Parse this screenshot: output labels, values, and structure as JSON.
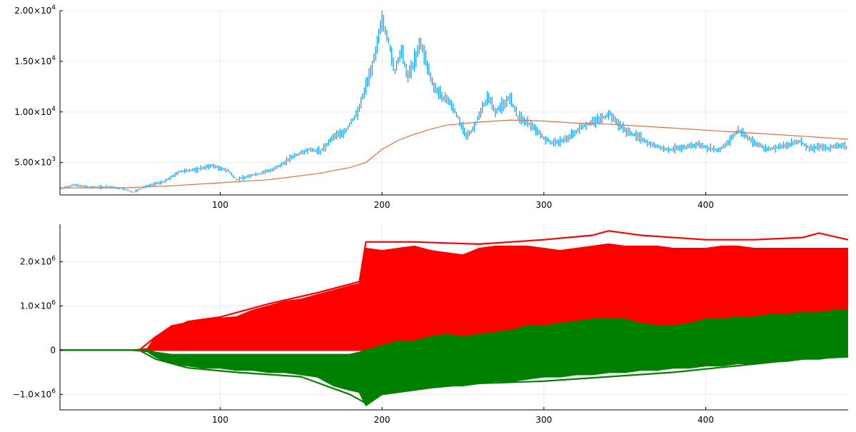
{
  "chart_data": [
    {
      "type": "line",
      "title": "",
      "xlabel": "",
      "ylabel": "",
      "xlim": [
        1,
        488
      ],
      "ylim": [
        1800,
        20000
      ],
      "grid": true,
      "legend": "none",
      "xticks": [
        100,
        200,
        300,
        400
      ],
      "yticks": [
        {
          "value": 5000,
          "mantissa": "5.00×10",
          "exp": "3"
        },
        {
          "value": 10000,
          "mantissa": "1.00×10",
          "exp": "4"
        },
        {
          "value": 15000,
          "mantissa": "1.50×10",
          "exp": "4"
        },
        {
          "value": 20000,
          "mantissa": "2.00×10",
          "exp": "4"
        }
      ],
      "series": [
        {
          "style": "range-bars",
          "color": "#009AFA",
          "points": [
            [
              1,
              2400
            ],
            [
              10,
              2800
            ],
            [
              20,
              2550
            ],
            [
              30,
              2600
            ],
            [
              40,
              2450
            ],
            [
              46,
              2050
            ],
            [
              55,
              2700
            ],
            [
              65,
              3100
            ],
            [
              75,
              4100
            ],
            [
              85,
              4300
            ],
            [
              95,
              4700
            ],
            [
              105,
              4200
            ],
            [
              110,
              3300
            ],
            [
              118,
              3700
            ],
            [
              125,
              3900
            ],
            [
              135,
              4500
            ],
            [
              145,
              5600
            ],
            [
              155,
              6300
            ],
            [
              162,
              6100
            ],
            [
              170,
              7500
            ],
            [
              178,
              8200
            ],
            [
              185,
              10000
            ],
            [
              190,
              12500
            ],
            [
              193,
              14000
            ],
            [
              197,
              16500
            ],
            [
              200,
              19300
            ],
            [
              204,
              17000
            ],
            [
              208,
              14000
            ],
            [
              212,
              16000
            ],
            [
              216,
              13500
            ],
            [
              220,
              15000
            ],
            [
              224,
              16800
            ],
            [
              228,
              14500
            ],
            [
              232,
              12500
            ],
            [
              237,
              11500
            ],
            [
              242,
              11000
            ],
            [
              247,
              9500
            ],
            [
              252,
              7500
            ],
            [
              257,
              8500
            ],
            [
              262,
              10500
            ],
            [
              266,
              11500
            ],
            [
              270,
              10000
            ],
            [
              275,
              10800
            ],
            [
              279,
              11400
            ],
            [
              284,
              9500
            ],
            [
              289,
              9000
            ],
            [
              295,
              8400
            ],
            [
              300,
              7400
            ],
            [
              306,
              6900
            ],
            [
              312,
              7200
            ],
            [
              318,
              7800
            ],
            [
              324,
              8600
            ],
            [
              330,
              9000
            ],
            [
              336,
              9400
            ],
            [
              341,
              9800
            ],
            [
              346,
              8800
            ],
            [
              352,
              8000
            ],
            [
              358,
              7600
            ],
            [
              364,
              7000
            ],
            [
              370,
              6600
            ],
            [
              377,
              6200
            ],
            [
              384,
              6500
            ],
            [
              390,
              6600
            ],
            [
              396,
              6800
            ],
            [
              402,
              6400
            ],
            [
              408,
              6200
            ],
            [
              414,
              7000
            ],
            [
              420,
              8200
            ],
            [
              426,
              7500
            ],
            [
              432,
              6800
            ],
            [
              438,
              6300
            ],
            [
              445,
              6500
            ],
            [
              452,
              6800
            ],
            [
              458,
              7100
            ],
            [
              464,
              6400
            ],
            [
              470,
              6600
            ],
            [
              476,
              6400
            ],
            [
              482,
              6700
            ],
            [
              488,
              6500
            ]
          ]
        },
        {
          "style": "line",
          "color": "#E26F46",
          "points": [
            [
              1,
              2500
            ],
            [
              40,
              2500
            ],
            [
              70,
              2700
            ],
            [
              100,
              3000
            ],
            [
              130,
              3300
            ],
            [
              160,
              3900
            ],
            [
              180,
              4500
            ],
            [
              190,
              5000
            ],
            [
              200,
              6300
            ],
            [
              210,
              7200
            ],
            [
              220,
              7800
            ],
            [
              230,
              8300
            ],
            [
              240,
              8700
            ],
            [
              260,
              9000
            ],
            [
              280,
              9200
            ],
            [
              300,
              9100
            ],
            [
              320,
              8900
            ],
            [
              340,
              8800
            ],
            [
              360,
              8600
            ],
            [
              380,
              8400
            ],
            [
              400,
              8200
            ],
            [
              420,
              8000
            ],
            [
              440,
              7800
            ],
            [
              460,
              7600
            ],
            [
              488,
              7300
            ]
          ]
        }
      ]
    },
    {
      "type": "line",
      "title": "",
      "xlabel": "",
      "ylabel": "",
      "xlim": [
        1,
        488
      ],
      "ylim": [
        -1350000,
        2850000
      ],
      "grid": true,
      "legend": "none",
      "xticks": [
        100,
        200,
        300,
        400
      ],
      "yticks": [
        {
          "value": -1000000,
          "mantissa": "−1.0×10",
          "exp": "6"
        },
        {
          "value": 0,
          "mantissa": "0",
          "exp": ""
        },
        {
          "value": 1000000,
          "mantissa": "1.0×10",
          "exp": "6"
        },
        {
          "value": 2000000,
          "mantissa": "2.0×10",
          "exp": "6"
        }
      ],
      "band_colors": {
        "upper": "#FF0000",
        "lower": "#008000"
      },
      "bands": [
        {
          "color": "#FF0000",
          "x": [
            1,
            45,
            55,
            60,
            70,
            80,
            90,
            100,
            110,
            120,
            130,
            140,
            150,
            160,
            170,
            180,
            186,
            190,
            200,
            210,
            220,
            230,
            240,
            250,
            260,
            270,
            280,
            290,
            300,
            310,
            320,
            330,
            340,
            350,
            360,
            370,
            380,
            390,
            400,
            410,
            420,
            430,
            440,
            450,
            460,
            470,
            480,
            488
          ],
          "upper": [
            0,
            0,
            30000,
            300000,
            550000,
            620000,
            700000,
            720000,
            750000,
            900000,
            1000000,
            1100000,
            1150000,
            1250000,
            1350000,
            1450000,
            1500000,
            2300000,
            2250000,
            2300000,
            2350000,
            2250000,
            2200000,
            2150000,
            2300000,
            2350000,
            2350000,
            2350000,
            2300000,
            2250000,
            2300000,
            2350000,
            2400000,
            2350000,
            2350000,
            2350000,
            2300000,
            2300000,
            2300000,
            2350000,
            2350000,
            2300000,
            2300000,
            2300000,
            2300000,
            2300000,
            2300000,
            2300000
          ],
          "lower": [
            0,
            0,
            0,
            0,
            0,
            0,
            0,
            0,
            0,
            0,
            0,
            0,
            0,
            0,
            0,
            0,
            0,
            0,
            50000,
            80000,
            100000,
            80000,
            50000,
            30000,
            100000,
            150000,
            200000,
            200000,
            150000,
            150000,
            200000,
            200000,
            250000,
            200000,
            150000,
            100000,
            50000,
            50000,
            0,
            50000,
            100000,
            100000,
            100000,
            150000,
            200000,
            200000,
            200000,
            200000
          ]
        },
        {
          "color": "#008000",
          "x": [
            1,
            45,
            55,
            60,
            70,
            80,
            90,
            100,
            110,
            120,
            130,
            140,
            150,
            160,
            170,
            180,
            186,
            190,
            200,
            210,
            220,
            230,
            240,
            250,
            260,
            270,
            280,
            290,
            300,
            310,
            320,
            330,
            340,
            350,
            360,
            370,
            380,
            390,
            400,
            410,
            420,
            430,
            440,
            450,
            460,
            470,
            480,
            488
          ],
          "upper": [
            0,
            0,
            0,
            -50000,
            -100000,
            -100000,
            -100000,
            -100000,
            -100000,
            -100000,
            -100000,
            -100000,
            -100000,
            -100000,
            -100000,
            -100000,
            -50000,
            0,
            100000,
            200000,
            200000,
            300000,
            350000,
            300000,
            350000,
            400000,
            450000,
            550000,
            550000,
            600000,
            650000,
            700000,
            700000,
            700000,
            600000,
            550000,
            550000,
            600000,
            700000,
            700000,
            750000,
            750000,
            800000,
            800000,
            850000,
            850000,
            900000,
            900000
          ],
          "lower": [
            0,
            0,
            -30000,
            -150000,
            -300000,
            -350000,
            -400000,
            -400000,
            -450000,
            -450000,
            -500000,
            -500000,
            -550000,
            -600000,
            -800000,
            -900000,
            -950000,
            -1250000,
            -1000000,
            -950000,
            -900000,
            -850000,
            -800000,
            -800000,
            -750000,
            -700000,
            -700000,
            -650000,
            -600000,
            -600000,
            -550000,
            -550000,
            -500000,
            -500000,
            -450000,
            -450000,
            -400000,
            -400000,
            -350000,
            -350000,
            -300000,
            -300000,
            -250000,
            -250000,
            -200000,
            -200000,
            -150000,
            -150000
          ]
        }
      ],
      "series": [
        {
          "style": "line",
          "color": "#FF0000",
          "points": [
            [
              1,
              0
            ],
            [
              50,
              0
            ],
            [
              60,
              300000
            ],
            [
              80,
              650000
            ],
            [
              100,
              750000
            ],
            [
              130,
              1050000
            ],
            [
              160,
              1300000
            ],
            [
              186,
              1550000
            ],
            [
              190,
              2450000
            ],
            [
              220,
              2450000
            ],
            [
              260,
              2400000
            ],
            [
              300,
              2500000
            ],
            [
              330,
              2600000
            ],
            [
              340,
              2700000
            ],
            [
              360,
              2600000
            ],
            [
              400,
              2500000
            ],
            [
              430,
              2500000
            ],
            [
              460,
              2550000
            ],
            [
              470,
              2650000
            ],
            [
              488,
              2500000
            ]
          ]
        },
        {
          "style": "line",
          "color": "#008000",
          "points": [
            [
              1,
              0
            ],
            [
              50,
              0
            ],
            [
              60,
              -200000
            ],
            [
              80,
              -400000
            ],
            [
              110,
              -500000
            ],
            [
              150,
              -600000
            ],
            [
              180,
              -1000000
            ],
            [
              190,
              -1200000
            ],
            [
              200,
              -1000000
            ],
            [
              230,
              -850000
            ],
            [
              260,
              -750000
            ],
            [
              300,
              -700000
            ],
            [
              340,
              -600000
            ],
            [
              380,
              -500000
            ],
            [
              420,
              -350000
            ],
            [
              460,
              -200000
            ],
            [
              488,
              -150000
            ]
          ]
        }
      ]
    }
  ]
}
